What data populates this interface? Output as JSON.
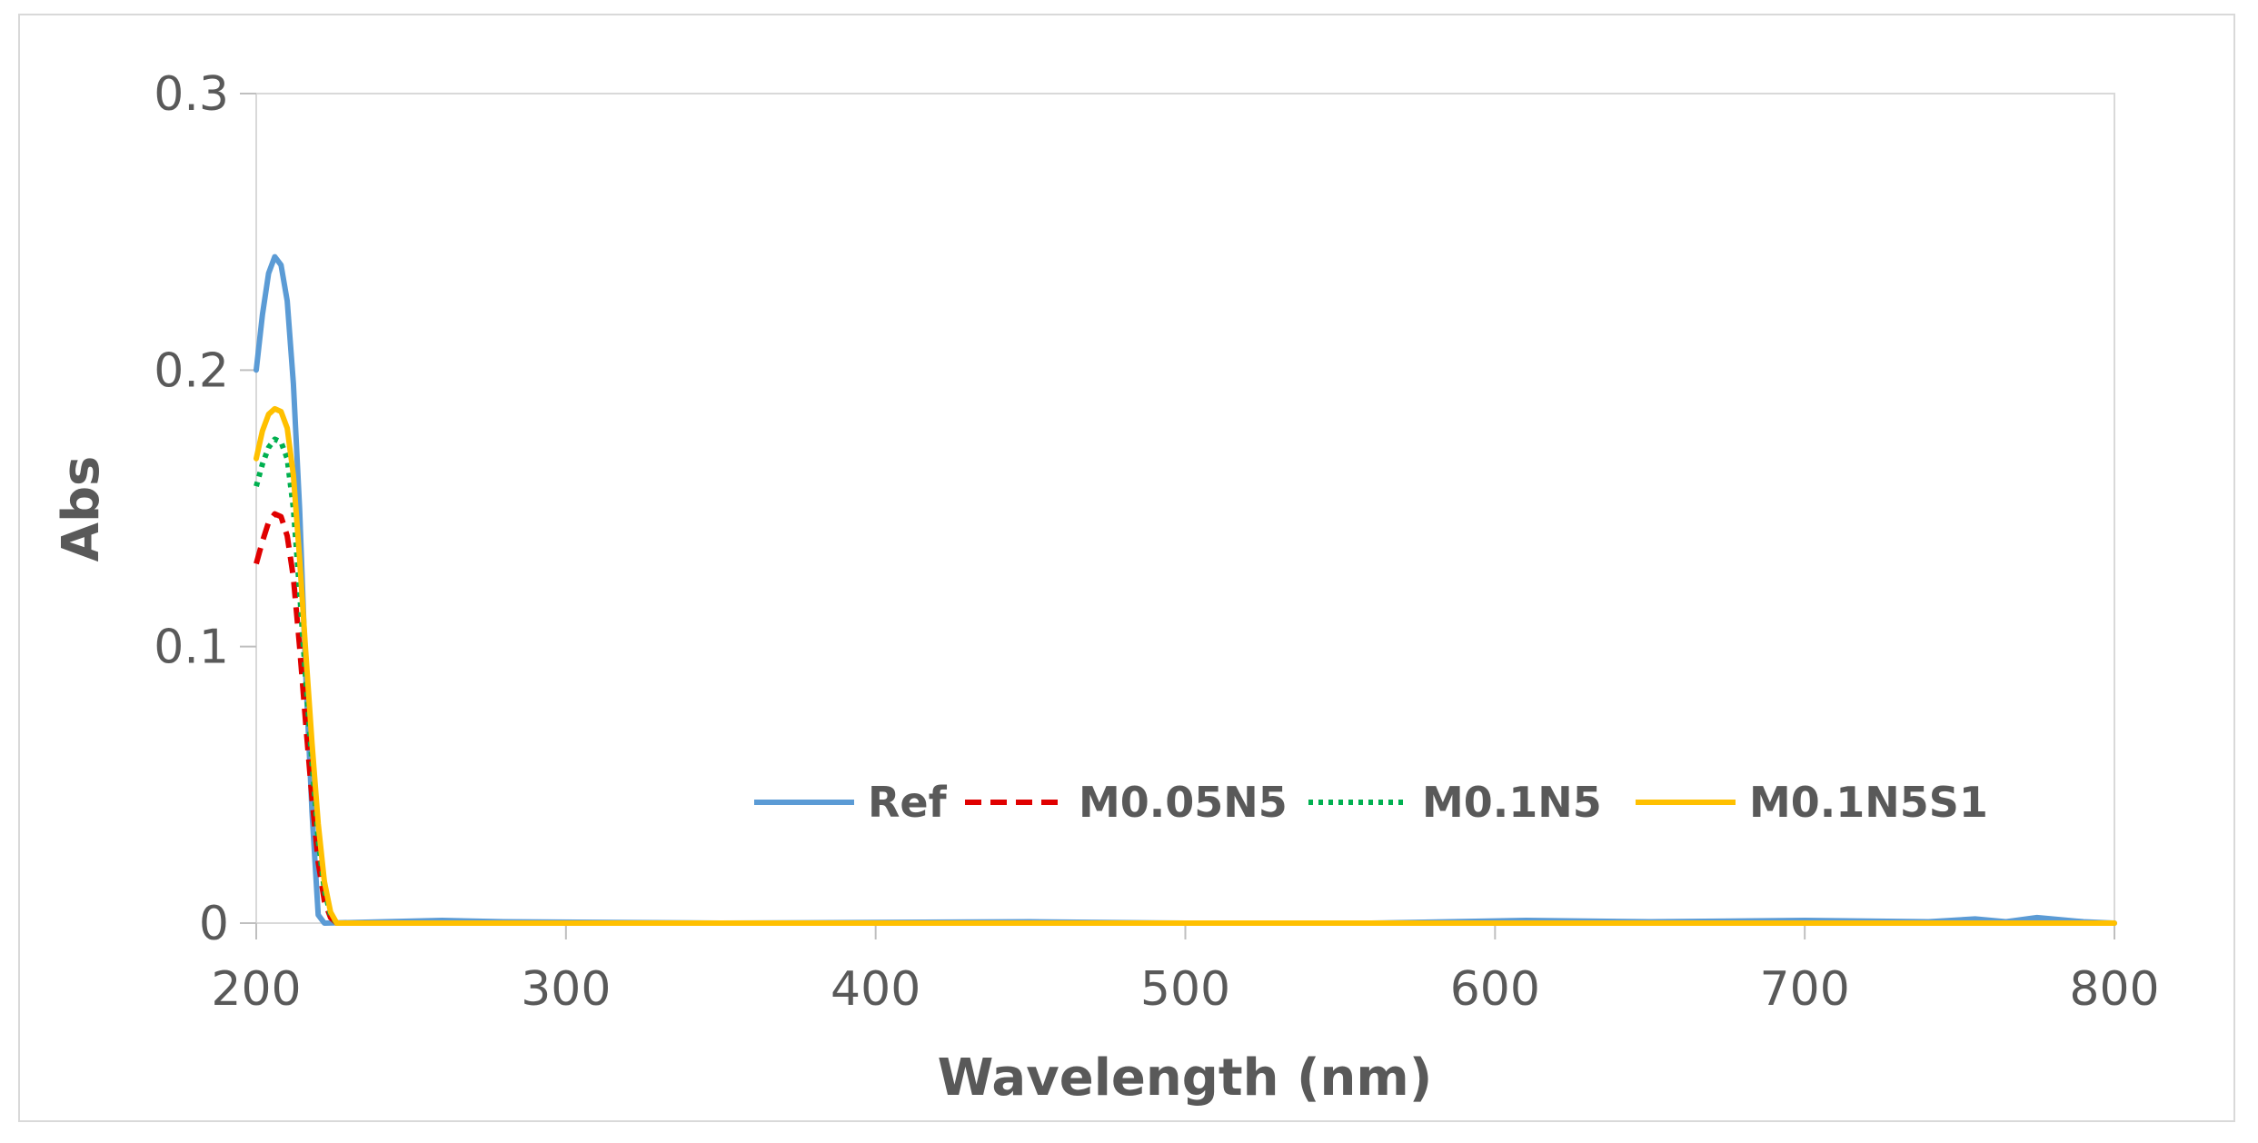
{
  "chart_data": {
    "type": "line",
    "title": "",
    "xlabel": "Wavelength (nm)",
    "ylabel": "Abs",
    "xlim": [
      200,
      800
    ],
    "ylim": [
      0,
      0.3
    ],
    "x_ticks": [
      200,
      300,
      400,
      500,
      600,
      700,
      800
    ],
    "y_ticks": [
      0,
      0.1,
      0.2,
      0.3
    ],
    "y_tick_labels": [
      "0",
      "0.1",
      "0.2",
      "0.3"
    ],
    "grid": false,
    "legend_position": "bottom-right-inside",
    "series": [
      {
        "name": "Ref",
        "color": "#5b9bd5",
        "style": "solid",
        "points": [
          [
            200,
            0.2
          ],
          [
            202,
            0.22
          ],
          [
            204,
            0.235
          ],
          [
            206,
            0.241
          ],
          [
            208,
            0.238
          ],
          [
            210,
            0.225
          ],
          [
            212,
            0.195
          ],
          [
            214,
            0.15
          ],
          [
            216,
            0.09
          ],
          [
            218,
            0.04
          ],
          [
            220,
            0.003
          ],
          [
            222,
            0
          ],
          [
            260,
            0.001
          ],
          [
            280,
            0.0005
          ],
          [
            350,
            0
          ],
          [
            450,
            0.0005
          ],
          [
            500,
            0
          ],
          [
            560,
            0
          ],
          [
            610,
            0.001
          ],
          [
            650,
            0.0005
          ],
          [
            700,
            0.001
          ],
          [
            740,
            0.0005
          ],
          [
            755,
            0.0015
          ],
          [
            765,
            0.0005
          ],
          [
            775,
            0.002
          ],
          [
            790,
            0.0005
          ],
          [
            800,
            0
          ]
        ]
      },
      {
        "name": "M0.05N5",
        "color": "#e00000",
        "style": "dashed",
        "points": [
          [
            200,
            0.13
          ],
          [
            202,
            0.138
          ],
          [
            204,
            0.145
          ],
          [
            206,
            0.148
          ],
          [
            208,
            0.147
          ],
          [
            210,
            0.14
          ],
          [
            212,
            0.125
          ],
          [
            214,
            0.1
          ],
          [
            216,
            0.072
          ],
          [
            218,
            0.045
          ],
          [
            220,
            0.022
          ],
          [
            222,
            0.008
          ],
          [
            224,
            0.002
          ],
          [
            226,
            0
          ],
          [
            800,
            0
          ]
        ]
      },
      {
        "name": "M0.1N5",
        "color": "#00b050",
        "style": "dotted",
        "points": [
          [
            200,
            0.158
          ],
          [
            202,
            0.166
          ],
          [
            204,
            0.172
          ],
          [
            206,
            0.175
          ],
          [
            208,
            0.174
          ],
          [
            210,
            0.168
          ],
          [
            212,
            0.15
          ],
          [
            214,
            0.12
          ],
          [
            216,
            0.088
          ],
          [
            218,
            0.058
          ],
          [
            220,
            0.03
          ],
          [
            222,
            0.012
          ],
          [
            224,
            0.003
          ],
          [
            226,
            0
          ],
          [
            800,
            0
          ]
        ]
      },
      {
        "name": "M0.1N5S1",
        "color": "#ffc000",
        "style": "solid",
        "points": [
          [
            200,
            0.168
          ],
          [
            202,
            0.178
          ],
          [
            204,
            0.184
          ],
          [
            206,
            0.186
          ],
          [
            208,
            0.185
          ],
          [
            210,
            0.179
          ],
          [
            212,
            0.162
          ],
          [
            214,
            0.132
          ],
          [
            216,
            0.098
          ],
          [
            218,
            0.065
          ],
          [
            220,
            0.036
          ],
          [
            222,
            0.015
          ],
          [
            224,
            0.004
          ],
          [
            226,
            0
          ],
          [
            800,
            0
          ]
        ]
      }
    ]
  }
}
